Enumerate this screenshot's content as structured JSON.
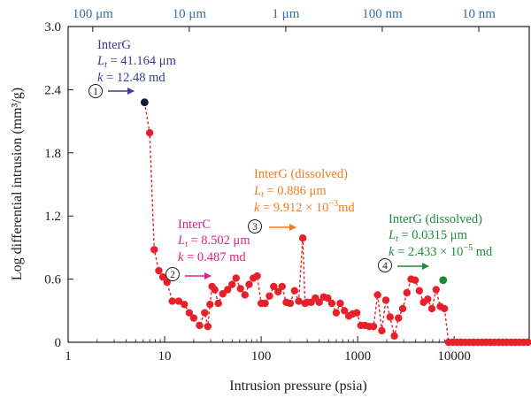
{
  "chart_data": {
    "type": "scatter",
    "xscale": "log",
    "xlim": [
      1,
      60000
    ],
    "ylim": [
      0,
      3.0
    ],
    "xlabel": "Intrusion pressure (psia)",
    "ylabel": "Log differential intrusion (mm³/g)",
    "x_ticks": [
      {
        "value": 1,
        "label": "1"
      },
      {
        "value": 10,
        "label": "10"
      },
      {
        "value": 100,
        "label": "100"
      },
      {
        "value": 1000,
        "label": "1000"
      },
      {
        "value": 10000,
        "label": "10000"
      }
    ],
    "y_ticks": [
      {
        "value": 0,
        "label": "0"
      },
      {
        "value": 0.6,
        "label": "0.6"
      },
      {
        "value": 1.2,
        "label": "1.2"
      },
      {
        "value": 1.8,
        "label": "1.8"
      },
      {
        "value": 2.4,
        "label": "2.4"
      },
      {
        "value": 3.0,
        "label": "3.0"
      }
    ],
    "top_axis_ticks": [
      {
        "pressure": 1.8,
        "label": "100 μm"
      },
      {
        "pressure": 18,
        "label": "10 μm"
      },
      {
        "pressure": 180,
        "label": "1 μm"
      },
      {
        "pressure": 1800,
        "label": "100 nm"
      },
      {
        "pressure": 18000,
        "label": "10 nm"
      }
    ],
    "grid": false,
    "colors": {
      "series": "#e8202a",
      "line": "#e8202a",
      "interg": "#3a3a94",
      "interc": "#e0218a",
      "dissolved1": "#f07c1e",
      "dissolved2": "#1e8a3c",
      "top_axis": "#2e6fb0"
    },
    "series": [
      {
        "x": [
          6.2,
          7.0,
          7.8,
          8.7,
          9.6,
          10.6,
          12,
          14,
          16,
          18,
          20,
          23,
          26,
          28,
          29.5,
          31,
          33,
          36,
          40,
          45,
          50,
          55,
          61,
          68,
          75,
          83,
          91,
          100,
          110,
          122,
          135,
          150,
          165,
          182,
          200,
          222,
          245,
          270,
          285,
          300,
          330,
          365,
          400,
          445,
          490,
          540,
          600,
          660,
          730,
          810,
          890,
          980,
          1080,
          1190,
          1320,
          1460,
          1610,
          1780,
          1960,
          2170,
          2400,
          2650,
          2930,
          3240,
          3580,
          3950,
          4360,
          4820,
          5320,
          5880,
          6500,
          7180,
          7930,
          8760,
          9680,
          10700,
          11800,
          13000,
          14400,
          15900,
          17600,
          19400,
          21400,
          23700,
          26100,
          28900,
          31900,
          35200,
          38900,
          43000,
          47500,
          52500,
          58000
        ],
        "y": [
          2.28,
          1.99,
          0.88,
          0.68,
          0.62,
          0.57,
          0.39,
          0.39,
          0.36,
          0.28,
          0.23,
          0.16,
          0.28,
          0.15,
          0.36,
          0.53,
          0.5,
          0.37,
          0.46,
          0.5,
          0.55,
          0.61,
          0.51,
          0.45,
          0.55,
          0.61,
          0.63,
          0.37,
          0.37,
          0.44,
          0.53,
          0.48,
          0.53,
          0.38,
          0.37,
          0.49,
          0.39,
          0.99,
          0.37,
          0.38,
          0.38,
          0.42,
          0.38,
          0.43,
          0.42,
          0.37,
          0.28,
          0.37,
          0.3,
          0.25,
          0.27,
          0.28,
          0.16,
          0.16,
          0.15,
          0.15,
          0.45,
          0.11,
          0.4,
          0.24,
          0.06,
          0.23,
          0.32,
          0.47,
          0.6,
          0.59,
          0.49,
          0.38,
          0.41,
          0.32,
          0.5,
          0.34,
          0.32,
          0.0,
          0.0,
          0.0,
          0.0,
          0.0,
          0.0,
          0.0,
          0.0,
          0.0,
          0.0,
          0.0,
          0.0,
          0.0,
          0.0,
          0.0,
          0.0,
          0.0,
          0.0,
          0.0,
          0.0
        ]
      }
    ],
    "highlight_points": [
      {
        "x": 6.2,
        "y": 2.28,
        "color": "#1a1a40"
      },
      {
        "x": 7700,
        "y": 0.59,
        "color": "#1e8a3c"
      }
    ],
    "annotations": [
      {
        "id": "1",
        "number": "1",
        "color": "#3a3a94",
        "title": "InterG",
        "lt": "41.164",
        "lt_unit": " μm",
        "k": "12.48",
        "k_unit": " md"
      },
      {
        "id": "2",
        "number": "2",
        "color": "#e0218a",
        "title": "InterC",
        "lt": "8.502",
        "lt_unit": " μm",
        "k": "0.487",
        "k_unit": " md"
      },
      {
        "id": "3",
        "number": "3",
        "color": "#f07c1e",
        "title": "InterG (dissolved)",
        "lt": "0.886",
        "lt_unit": " μm",
        "k": "9.912 × 10",
        "k_exp": "−3",
        "k_unit": "md"
      },
      {
        "id": "4",
        "number": "4",
        "color": "#1e8a3c",
        "title": "InterG (dissolved)",
        "lt": "0.0315",
        "lt_unit": " μm",
        "k": "2.433 × 10",
        "k_exp": "−5",
        "k_unit": " md"
      }
    ]
  }
}
